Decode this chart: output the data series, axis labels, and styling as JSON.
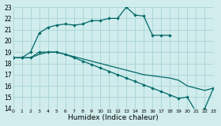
{
  "bg_color": "#d0ecec",
  "grid_color": "#a8d4d4",
  "line_color": "#006868",
  "xlabel": "Humidex (Indice chaleur)",
  "xlim": [
    0,
    23
  ],
  "ylim": [
    14,
    23
  ],
  "xticks": [
    0,
    1,
    2,
    3,
    4,
    5,
    6,
    7,
    8,
    9,
    10,
    11,
    12,
    13,
    14,
    15,
    16,
    17,
    18,
    19,
    20,
    21,
    22,
    23
  ],
  "yticks": [
    14,
    15,
    16,
    17,
    18,
    19,
    20,
    21,
    22,
    23
  ],
  "line1_x": [
    0,
    1,
    2,
    3,
    4,
    5,
    6,
    7,
    8,
    9,
    10,
    11,
    12,
    13,
    14,
    15,
    16,
    17,
    18
  ],
  "line1_y": [
    18.5,
    18.5,
    19.0,
    20.7,
    21.2,
    21.4,
    21.5,
    21.4,
    21.5,
    21.8,
    21.8,
    22.0,
    22.0,
    23.0,
    22.3,
    22.2,
    20.5,
    20.5,
    20.5
  ],
  "line2_x": [
    0,
    1,
    2,
    3,
    4,
    5,
    6,
    7,
    8,
    9,
    10,
    11,
    12,
    13,
    14,
    15,
    16,
    17,
    18,
    19,
    20,
    21,
    22,
    23
  ],
  "line2_y": [
    18.5,
    18.5,
    18.5,
    18.8,
    19.0,
    19.0,
    18.8,
    18.6,
    18.4,
    18.2,
    18.0,
    17.8,
    17.6,
    17.4,
    17.2,
    17.0,
    16.9,
    16.8,
    16.7,
    16.5,
    16.0,
    15.8,
    15.6,
    15.8
  ],
  "line3_x": [
    0,
    1,
    2,
    3,
    4,
    5,
    6,
    7,
    8,
    9,
    10,
    11,
    12,
    13,
    14,
    15,
    16,
    17,
    18,
    19,
    20,
    21,
    22,
    23
  ],
  "line3_y": [
    18.5,
    18.5,
    18.5,
    19.0,
    19.0,
    19.0,
    18.8,
    18.5,
    18.2,
    17.9,
    17.6,
    17.3,
    17.0,
    16.7,
    16.4,
    16.1,
    15.8,
    15.5,
    15.2,
    14.9,
    15.0,
    13.7,
    14.0,
    15.8
  ]
}
